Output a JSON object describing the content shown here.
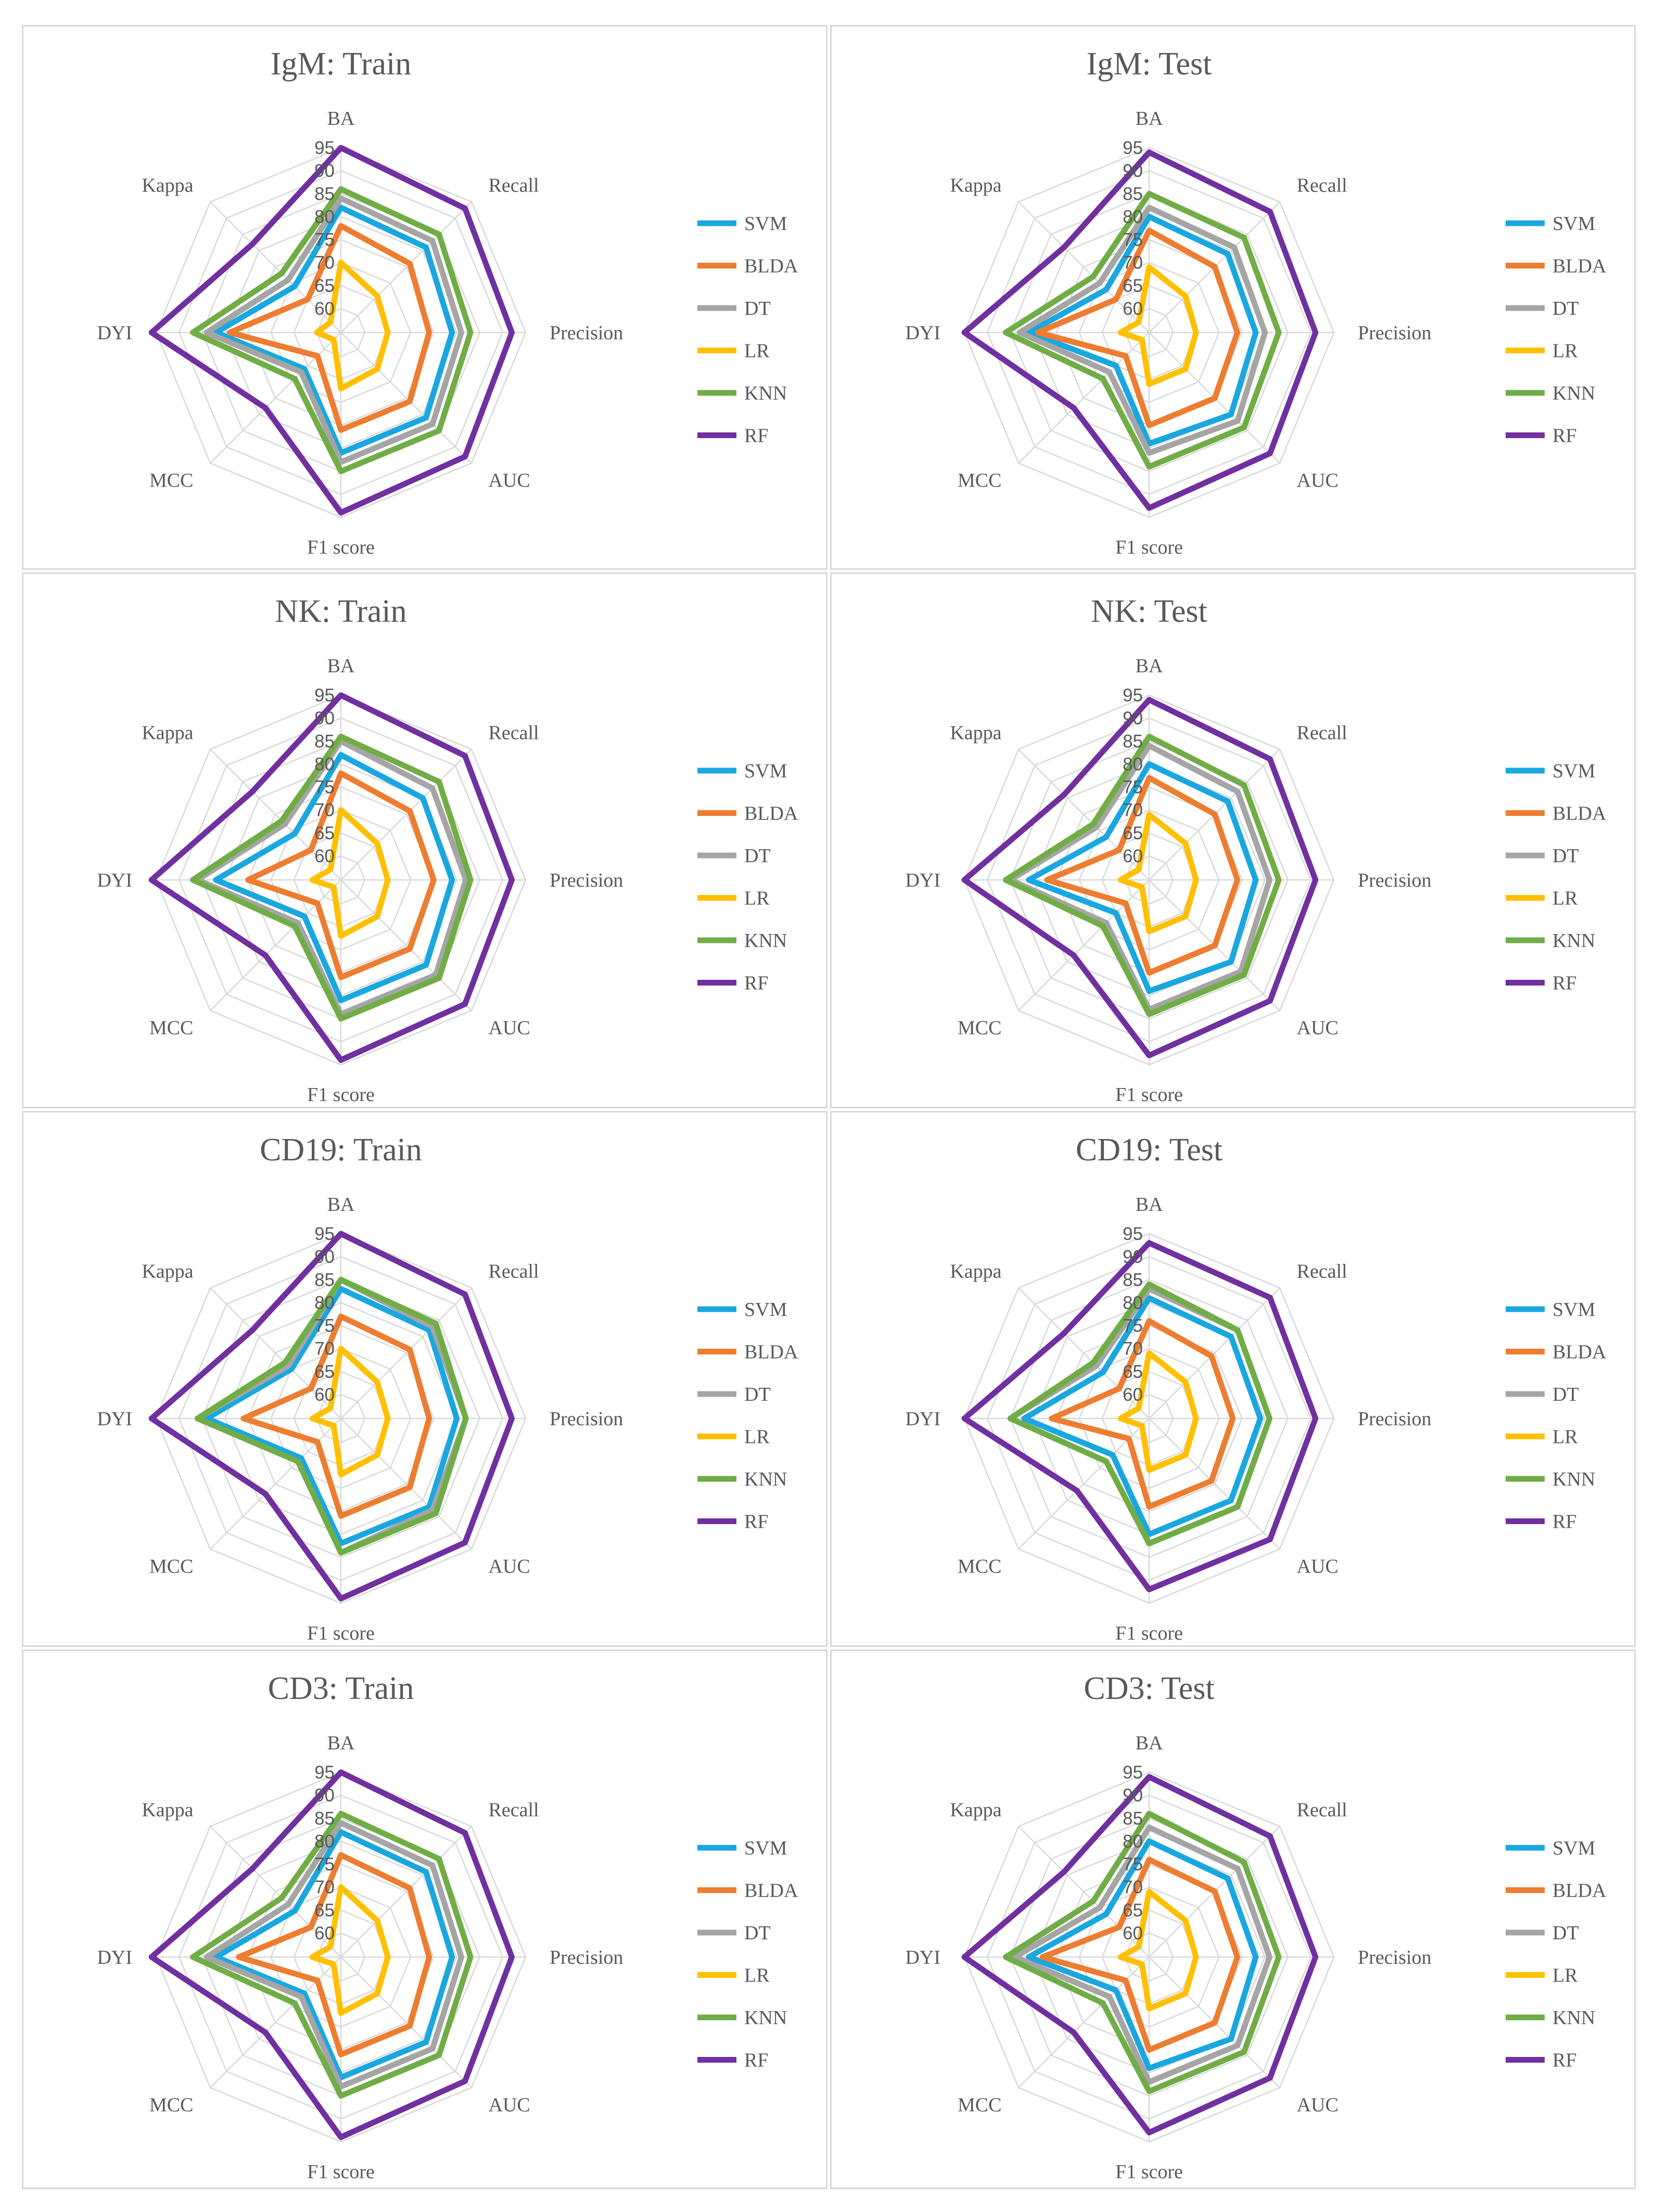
{
  "colors": {
    "SVM": "#1aa7e0",
    "BLDA": "#ed7d31",
    "DT": "#a5a5a5",
    "LR": "#ffc000",
    "KNN": "#70ad47",
    "RF": "#7030a0"
  },
  "chart_data": [
    {
      "type": "radar",
      "title": "IgM: Train",
      "axes": [
        "BA",
        "Recall",
        "Precision",
        "AUC",
        "F1 score",
        "MCC",
        "DYI",
        "Kappa"
      ],
      "ticks": [
        "60",
        "65",
        "70",
        "75",
        "80",
        "85",
        "90",
        "95"
      ],
      "rmin": 55,
      "rmax": 95,
      "series": [
        {
          "name": "SVM",
          "values": [
            82,
            81,
            79,
            81,
            81,
            66,
            82,
            69
          ]
        },
        {
          "name": "BLDA",
          "values": [
            78,
            76,
            74,
            76,
            76,
            62,
            79,
            65
          ]
        },
        {
          "name": "DT",
          "values": [
            84,
            83,
            81,
            83,
            83,
            67,
            84,
            71
          ]
        },
        {
          "name": "LR",
          "values": [
            70,
            66,
            65,
            66,
            67,
            57,
            60,
            58
          ]
        },
        {
          "name": "KNN",
          "values": [
            86,
            85,
            83,
            85,
            85,
            69,
            87,
            73
          ]
        },
        {
          "name": "RF",
          "values": [
            95,
            93,
            92,
            93,
            94,
            78,
            96,
            82
          ]
        }
      ]
    },
    {
      "type": "radar",
      "title": "IgM: Test",
      "axes": [
        "BA",
        "Recall",
        "Precision",
        "AUC",
        "F1 score",
        "MCC",
        "DYI",
        "Kappa"
      ],
      "ticks": [
        "60",
        "65",
        "70",
        "75",
        "80",
        "85",
        "90",
        "95"
      ],
      "rmin": 55,
      "rmax": 95,
      "series": [
        {
          "name": "SVM",
          "values": [
            80,
            79,
            78,
            80,
            79,
            65,
            81,
            68
          ]
        },
        {
          "name": "BLDA",
          "values": [
            77,
            75,
            74,
            75,
            75,
            62,
            79,
            65
          ]
        },
        {
          "name": "DT",
          "values": [
            82,
            81,
            80,
            82,
            81,
            67,
            83,
            70
          ]
        },
        {
          "name": "LR",
          "values": [
            69,
            66,
            65,
            66,
            66,
            57,
            61,
            58
          ]
        },
        {
          "name": "KNN",
          "values": [
            85,
            84,
            83,
            84,
            84,
            69,
            86,
            72
          ]
        },
        {
          "name": "RF",
          "values": [
            94,
            92,
            91,
            92,
            93,
            78,
            95,
            81
          ]
        }
      ]
    },
    {
      "type": "radar",
      "title": "NK: Train",
      "axes": [
        "BA",
        "Recall",
        "Precision",
        "AUC",
        "F1 score",
        "MCC",
        "DYI",
        "Kappa"
      ],
      "ticks": [
        "60",
        "65",
        "70",
        "75",
        "80",
        "85",
        "90",
        "95"
      ],
      "rmin": 55,
      "rmax": 95,
      "series": [
        {
          "name": "SVM",
          "values": [
            82,
            80,
            79,
            81,
            81,
            66,
            82,
            69
          ]
        },
        {
          "name": "BLDA",
          "values": [
            78,
            76,
            75,
            76,
            76,
            62,
            75,
            64
          ]
        },
        {
          "name": "DT",
          "values": [
            85,
            83,
            82,
            84,
            84,
            68,
            86,
            72
          ]
        },
        {
          "name": "LR",
          "values": [
            70,
            66,
            65,
            66,
            67,
            57,
            61,
            58
          ]
        },
        {
          "name": "KNN",
          "values": [
            86,
            85,
            83,
            85,
            85,
            69,
            87,
            73
          ]
        },
        {
          "name": "RF",
          "values": [
            95,
            93,
            92,
            93,
            94,
            78,
            96,
            82
          ]
        }
      ]
    },
    {
      "type": "radar",
      "title": "NK: Test",
      "axes": [
        "BA",
        "Recall",
        "Precision",
        "AUC",
        "F1 score",
        "MCC",
        "DYI",
        "Kappa"
      ],
      "ticks": [
        "60",
        "65",
        "70",
        "75",
        "80",
        "85",
        "90",
        "95"
      ],
      "rmin": 55,
      "rmax": 95,
      "series": [
        {
          "name": "SVM",
          "values": [
            80,
            79,
            78,
            80,
            79,
            65,
            81,
            68
          ]
        },
        {
          "name": "BLDA",
          "values": [
            77,
            75,
            74,
            75,
            75,
            62,
            77,
            64
          ]
        },
        {
          "name": "DT",
          "values": [
            84,
            82,
            81,
            83,
            83,
            68,
            85,
            71
          ]
        },
        {
          "name": "LR",
          "values": [
            69,
            66,
            65,
            66,
            66,
            57,
            61,
            58
          ]
        },
        {
          "name": "KNN",
          "values": [
            86,
            84,
            83,
            84,
            84,
            69,
            86,
            72
          ]
        },
        {
          "name": "RF",
          "values": [
            94,
            92,
            91,
            92,
            93,
            78,
            95,
            81
          ]
        }
      ]
    },
    {
      "type": "radar",
      "title": "CD19: Train",
      "axes": [
        "BA",
        "Recall",
        "Precision",
        "AUC",
        "F1 score",
        "MCC",
        "DYI",
        "Kappa"
      ],
      "ticks": [
        "60",
        "65",
        "70",
        "75",
        "80",
        "85",
        "90",
        "95"
      ],
      "rmin": 55,
      "rmax": 95,
      "series": [
        {
          "name": "SVM",
          "values": [
            83,
            82,
            80,
            82,
            82,
            67,
            84,
            70
          ]
        },
        {
          "name": "BLDA",
          "values": [
            77,
            76,
            74,
            76,
            76,
            62,
            76,
            64
          ]
        },
        {
          "name": "DT",
          "values": [
            85,
            83,
            82,
            83,
            84,
            68,
            86,
            71
          ]
        },
        {
          "name": "LR",
          "values": [
            70,
            66,
            65,
            66,
            67,
            57,
            61,
            58
          ]
        },
        {
          "name": "KNN",
          "values": [
            85,
            84,
            82,
            84,
            84,
            68,
            86,
            72
          ]
        },
        {
          "name": "RF",
          "values": [
            95,
            93,
            92,
            93,
            94,
            78,
            96,
            82
          ]
        }
      ]
    },
    {
      "type": "radar",
      "title": "CD19: Test",
      "axes": [
        "BA",
        "Recall",
        "Precision",
        "AUC",
        "F1 score",
        "MCC",
        "DYI",
        "Kappa"
      ],
      "ticks": [
        "60",
        "65",
        "70",
        "75",
        "80",
        "85",
        "90",
        "95"
      ],
      "rmin": 55,
      "rmax": 95,
      "series": [
        {
          "name": "SVM",
          "values": [
            81,
            80,
            79,
            80,
            80,
            66,
            82,
            69
          ]
        },
        {
          "name": "BLDA",
          "values": [
            76,
            74,
            73,
            74,
            74,
            61,
            76,
            64
          ]
        },
        {
          "name": "DT",
          "values": [
            83,
            82,
            81,
            82,
            82,
            68,
            85,
            71
          ]
        },
        {
          "name": "LR",
          "values": [
            69,
            66,
            65,
            66,
            66,
            57,
            61,
            58
          ]
        },
        {
          "name": "KNN",
          "values": [
            84,
            82,
            81,
            82,
            82,
            68,
            85,
            72
          ]
        },
        {
          "name": "RF",
          "values": [
            93,
            92,
            91,
            92,
            92,
            77,
            95,
            81
          ]
        }
      ]
    },
    {
      "type": "radar",
      "title": "CD3: Train",
      "axes": [
        "BA",
        "Recall",
        "Precision",
        "AUC",
        "F1 score",
        "MCC",
        "DYI",
        "Kappa"
      ],
      "ticks": [
        "60",
        "65",
        "70",
        "75",
        "80",
        "85",
        "90",
        "95"
      ],
      "rmin": 55,
      "rmax": 95,
      "series": [
        {
          "name": "SVM",
          "values": [
            82,
            81,
            79,
            81,
            81,
            66,
            82,
            69
          ]
        },
        {
          "name": "BLDA",
          "values": [
            77,
            76,
            74,
            76,
            76,
            62,
            77,
            64
          ]
        },
        {
          "name": "DT",
          "values": [
            84,
            83,
            81,
            83,
            83,
            67,
            84,
            71
          ]
        },
        {
          "name": "LR",
          "values": [
            70,
            66,
            65,
            66,
            67,
            57,
            61,
            58
          ]
        },
        {
          "name": "KNN",
          "values": [
            86,
            85,
            83,
            85,
            85,
            69,
            87,
            73
          ]
        },
        {
          "name": "RF",
          "values": [
            95,
            93,
            92,
            93,
            94,
            78,
            96,
            82
          ]
        }
      ]
    },
    {
      "type": "radar",
      "title": "CD3: Test",
      "axes": [
        "BA",
        "Recall",
        "Precision",
        "AUC",
        "F1 score",
        "MCC",
        "DYI",
        "Kappa"
      ],
      "ticks": [
        "60",
        "65",
        "70",
        "75",
        "80",
        "85",
        "90",
        "95"
      ],
      "rmin": 55,
      "rmax": 95,
      "series": [
        {
          "name": "SVM",
          "values": [
            80,
            79,
            78,
            80,
            79,
            65,
            81,
            68
          ]
        },
        {
          "name": "BLDA",
          "values": [
            76,
            75,
            74,
            75,
            75,
            62,
            78,
            64
          ]
        },
        {
          "name": "DT",
          "values": [
            83,
            82,
            81,
            82,
            82,
            67,
            84,
            70
          ]
        },
        {
          "name": "LR",
          "values": [
            69,
            66,
            65,
            66,
            66,
            57,
            61,
            58
          ]
        },
        {
          "name": "KNN",
          "values": [
            86,
            84,
            83,
            84,
            84,
            69,
            86,
            72
          ]
        },
        {
          "name": "RF",
          "values": [
            94,
            92,
            91,
            92,
            93,
            78,
            95,
            81
          ]
        }
      ]
    }
  ]
}
